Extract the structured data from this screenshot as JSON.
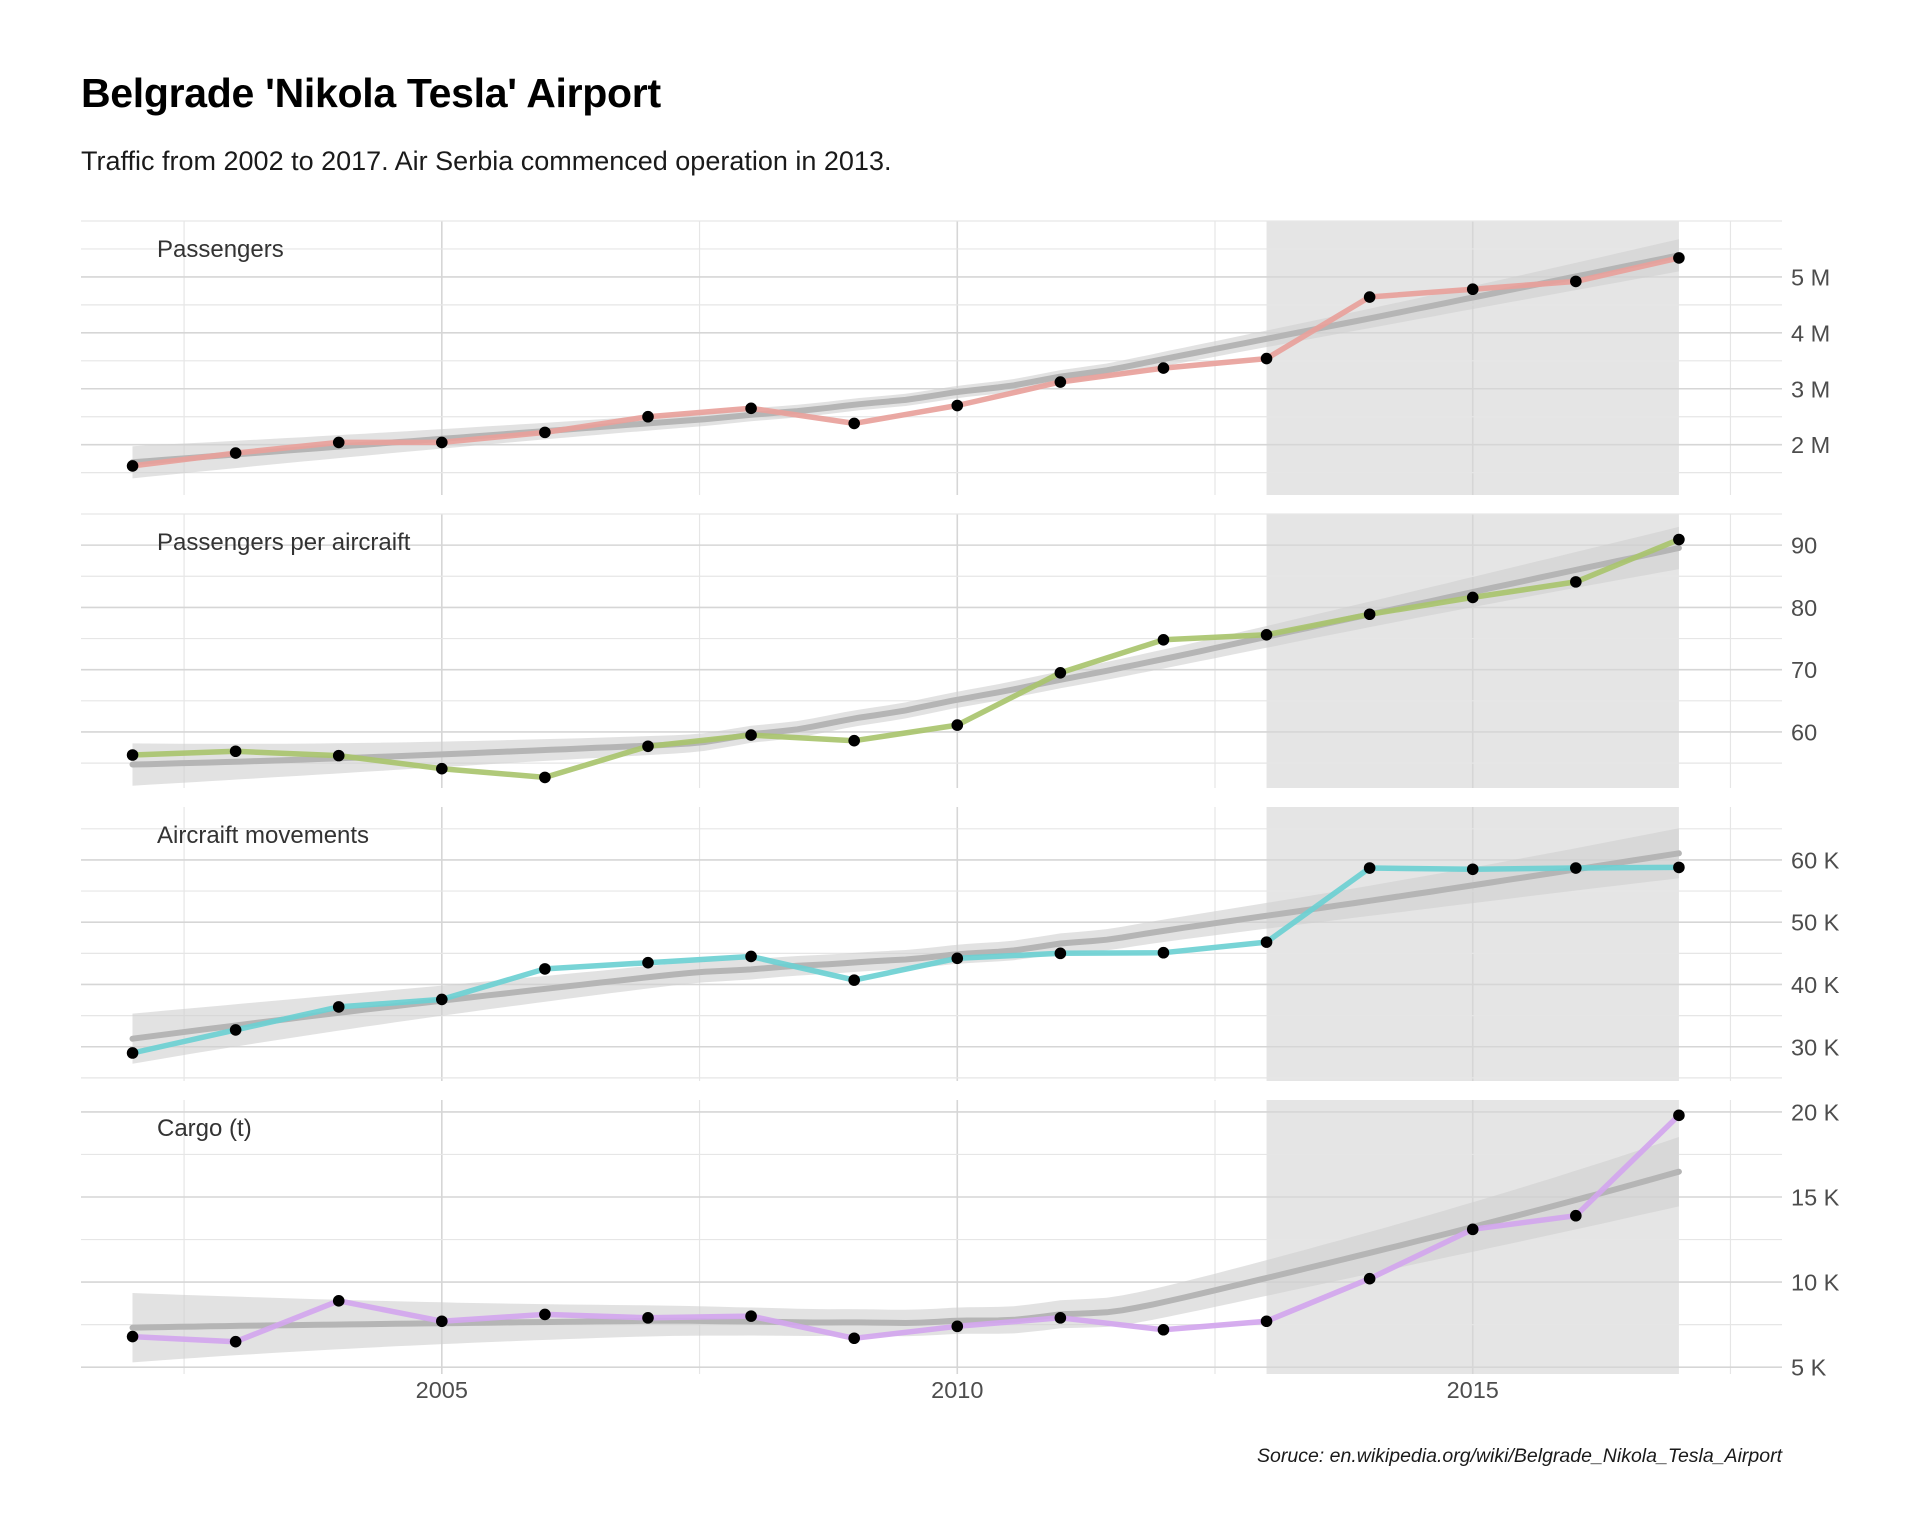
{
  "title": "Belgrade 'Nikola Tesla' Airport",
  "subtitle": "Traffic from 2002 to 2017. Air Serbia commenced operation in 2013.",
  "caption": "Soruce: en.wikipedia.org/wiki/Belgrade_Nikola_Tesla_Airport",
  "chart_data": {
    "type": "line",
    "x": [
      2002,
      2003,
      2004,
      2005,
      2006,
      2007,
      2008,
      2009,
      2010,
      2011,
      2012,
      2013,
      2014,
      2015,
      2016,
      2017
    ],
    "xlim": [
      2001.5,
      2018
    ],
    "x_ticks": [
      2005,
      2010,
      2015
    ],
    "x_tick_labels": [
      "2005",
      "2010",
      "2015"
    ],
    "shaded_period": [
      2013,
      2017
    ],
    "grid": true,
    "smooth_trend_with_confidence_band": true,
    "panels": [
      {
        "label": "Passengers",
        "color": "#e8a19b",
        "values": [
          1.62,
          1.85,
          2.04,
          2.04,
          2.22,
          2.5,
          2.65,
          2.38,
          2.7,
          3.12,
          3.37,
          3.54,
          4.64,
          4.78,
          4.92,
          5.34
        ],
        "ylim": [
          1.1,
          6.0
        ],
        "y_ticks": [
          2,
          3,
          4,
          5
        ],
        "y_tick_labels": [
          "2 M",
          "3 M",
          "4 M",
          "5 M"
        ]
      },
      {
        "label": "Passengers per aircraift",
        "color": "#a9c46e",
        "values": [
          56.3,
          56.9,
          56.2,
          54.1,
          52.7,
          57.7,
          59.5,
          58.6,
          61.1,
          69.5,
          74.8,
          75.6,
          78.9,
          81.6,
          84.1,
          90.9
        ],
        "ylim": [
          51.0,
          95.0
        ],
        "y_ticks": [
          60,
          70,
          80,
          90
        ],
        "y_tick_labels": [
          "60",
          "70",
          "80",
          "90"
        ]
      },
      {
        "label": "Aircraift movements",
        "color": "#6cd0d2",
        "values": [
          29000,
          32700,
          36400,
          37600,
          42500,
          43500,
          44500,
          40700,
          44200,
          45000,
          45100,
          46800,
          58700,
          58500,
          58700,
          58800
        ],
        "ylim": [
          24500,
          68500
        ],
        "y_ticks": [
          30000,
          40000,
          50000,
          60000
        ],
        "y_tick_labels": [
          "30 K",
          "40 K",
          "50 K",
          "60 K"
        ]
      },
      {
        "label": "Cargo (t)",
        "color": "#d3a6ee",
        "values": [
          6800,
          6500,
          8900,
          7700,
          8100,
          7900,
          8000,
          6700,
          7400,
          7900,
          7200,
          7700,
          10200,
          13100,
          13900,
          19800
        ],
        "ylim": [
          4600,
          20700
        ],
        "y_ticks": [
          5000,
          10000,
          15000,
          20000
        ],
        "y_tick_labels": [
          "5 K",
          "10 K",
          "15 K",
          "20 K"
        ]
      }
    ]
  }
}
